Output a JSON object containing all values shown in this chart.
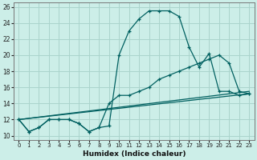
{
  "xlabel": "Humidex (Indice chaleur)",
  "background_color": "#cceee8",
  "grid_color": "#aad4cc",
  "line_color": "#006060",
  "xlim": [
    -0.5,
    23.5
  ],
  "ylim": [
    9.5,
    26.5
  ],
  "xticks": [
    0,
    1,
    2,
    3,
    4,
    5,
    6,
    7,
    8,
    9,
    10,
    11,
    12,
    13,
    14,
    15,
    16,
    17,
    18,
    19,
    20,
    21,
    22,
    23
  ],
  "yticks": [
    10,
    12,
    14,
    16,
    18,
    20,
    22,
    24,
    26
  ],
  "series": [
    {
      "x": [
        0,
        1,
        2,
        3,
        4,
        5,
        6,
        7,
        8,
        9,
        10,
        11,
        12,
        13,
        14,
        15,
        16,
        17,
        18,
        19,
        20,
        21,
        22,
        23
      ],
      "y": [
        12,
        10.5,
        11,
        12,
        12,
        12,
        11.5,
        10.5,
        11,
        11.2,
        20,
        23,
        24.5,
        25.5,
        25.5,
        25.5,
        24.8,
        21,
        18.5,
        20.2,
        15.5,
        15.5,
        15,
        15.2
      ],
      "has_markers": true
    },
    {
      "x": [
        0,
        1,
        2,
        3,
        4,
        5,
        6,
        7,
        8,
        9,
        10,
        11,
        12,
        13,
        14,
        15,
        16,
        17,
        18,
        19,
        20,
        21,
        22,
        23
      ],
      "y": [
        12,
        10.5,
        11,
        12,
        12,
        12,
        11.5,
        10.5,
        11,
        14,
        15,
        15,
        15.5,
        16,
        17,
        17.5,
        18,
        18.5,
        19,
        19.5,
        20,
        19,
        15.5,
        15.2
      ],
      "has_markers": true
    },
    {
      "x": [
        0,
        23
      ],
      "y": [
        12,
        15.2
      ],
      "has_markers": false
    },
    {
      "x": [
        0,
        23
      ],
      "y": [
        12,
        15.5
      ],
      "has_markers": false
    }
  ]
}
